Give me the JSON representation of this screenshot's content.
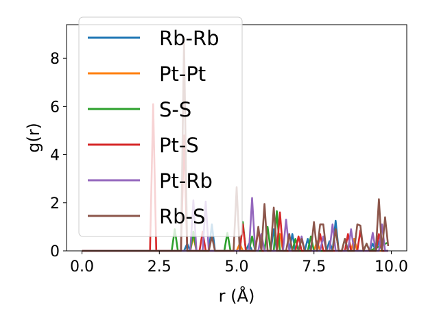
{
  "chart_data": {
    "type": "line",
    "title": "",
    "xlabel": "r (Å)",
    "ylabel": "g(r)",
    "xlim": [
      -0.5,
      10.5
    ],
    "ylim": [
      0,
      9.4
    ],
    "xticks": [
      0.0,
      2.5,
      5.0,
      7.5,
      10.0
    ],
    "xtick_labels": [
      "0.0",
      "2.5",
      "5.0",
      "7.5",
      "10.0"
    ],
    "yticks": [
      0,
      2,
      4,
      6,
      8
    ],
    "ytick_labels": [
      "0",
      "2",
      "4",
      "6",
      "8"
    ],
    "grid": false,
    "legend": "upper-left",
    "series": [
      {
        "name": "Rb-Rb",
        "color": "#1f77b4",
        "points": [
          [
            0,
            0
          ],
          [
            3.3,
            0
          ],
          [
            3.4,
            0.3
          ],
          [
            3.5,
            0
          ],
          [
            4.1,
            0
          ],
          [
            4.2,
            1.1
          ],
          [
            4.3,
            0
          ],
          [
            5.3,
            0
          ],
          [
            5.4,
            0.3
          ],
          [
            5.5,
            0
          ],
          [
            6.1,
            0
          ],
          [
            6.2,
            0.9
          ],
          [
            6.3,
            0
          ],
          [
            6.7,
            0
          ],
          [
            6.8,
            0.7
          ],
          [
            6.9,
            0
          ],
          [
            7.2,
            0
          ],
          [
            7.3,
            0.5
          ],
          [
            7.4,
            0
          ],
          [
            7.9,
            0
          ],
          [
            8.0,
            0.4
          ],
          [
            8.1,
            0
          ],
          [
            8.2,
            1.25
          ],
          [
            8.3,
            0
          ],
          [
            8.7,
            0
          ],
          [
            8.8,
            0.5
          ],
          [
            8.9,
            0
          ],
          [
            9.3,
            0
          ],
          [
            9.4,
            0.3
          ],
          [
            9.5,
            0
          ],
          [
            9.6,
            0.4
          ],
          [
            9.7,
            0
          ],
          [
            9.9,
            0
          ]
        ]
      },
      {
        "name": "Pt-Pt",
        "color": "#ff7f0e",
        "points": [
          [
            0,
            0
          ],
          [
            3.5,
            0
          ],
          [
            3.6,
            0.6
          ],
          [
            3.7,
            0
          ],
          [
            5.0,
            0
          ],
          [
            5.1,
            0.3
          ],
          [
            5.2,
            0
          ],
          [
            6.3,
            0
          ],
          [
            6.4,
            0.7
          ],
          [
            6.5,
            0
          ],
          [
            7.5,
            0
          ],
          [
            7.6,
            0.4
          ],
          [
            7.7,
            0
          ],
          [
            8.7,
            0
          ],
          [
            8.8,
            0.5
          ],
          [
            8.9,
            0
          ],
          [
            9.9,
            0
          ]
        ]
      },
      {
        "name": "S-S",
        "color": "#2ca02c",
        "points": [
          [
            0,
            0
          ],
          [
            2.9,
            0
          ],
          [
            3.0,
            0.9
          ],
          [
            3.1,
            0
          ],
          [
            3.5,
            0
          ],
          [
            3.6,
            0.8
          ],
          [
            3.7,
            0
          ],
          [
            4.6,
            0
          ],
          [
            4.7,
            0.75
          ],
          [
            4.8,
            0
          ],
          [
            5.1,
            0
          ],
          [
            5.2,
            1.2
          ],
          [
            5.3,
            0
          ],
          [
            5.4,
            0
          ],
          [
            5.5,
            0.6
          ],
          [
            5.6,
            0
          ],
          [
            5.9,
            0
          ],
          [
            6.0,
            1.0
          ],
          [
            6.1,
            0
          ],
          [
            6.2,
            0
          ],
          [
            6.3,
            1.65
          ],
          [
            6.4,
            0
          ],
          [
            6.8,
            0
          ],
          [
            6.9,
            0.5
          ],
          [
            7.0,
            0
          ],
          [
            7.3,
            0
          ],
          [
            7.4,
            0.6
          ],
          [
            7.5,
            0
          ],
          [
            8.1,
            0
          ],
          [
            8.2,
            0.9
          ],
          [
            8.3,
            0
          ],
          [
            8.4,
            0
          ],
          [
            8.5,
            0.5
          ],
          [
            8.6,
            0
          ],
          [
            9.1,
            0
          ],
          [
            9.2,
            0.3
          ],
          [
            9.3,
            0
          ],
          [
            9.9,
            0.35
          ]
        ]
      },
      {
        "name": "Pt-S",
        "color": "#d62728",
        "points": [
          [
            0,
            0
          ],
          [
            2.2,
            0
          ],
          [
            2.3,
            6.1
          ],
          [
            2.4,
            0
          ],
          [
            3.2,
            0
          ],
          [
            3.3,
            4.8
          ],
          [
            3.4,
            0
          ],
          [
            3.8,
            0
          ],
          [
            3.9,
            0.8
          ],
          [
            4.0,
            0
          ],
          [
            5.1,
            0
          ],
          [
            5.2,
            1.1
          ],
          [
            5.3,
            0
          ],
          [
            5.6,
            0
          ],
          [
            5.7,
            0.9
          ],
          [
            5.8,
            0
          ],
          [
            6.3,
            0
          ],
          [
            6.4,
            1.6
          ],
          [
            6.5,
            0
          ],
          [
            6.9,
            0
          ],
          [
            7.0,
            0.6
          ],
          [
            7.1,
            0
          ],
          [
            7.6,
            0
          ],
          [
            7.7,
            0.7
          ],
          [
            7.8,
            0
          ],
          [
            8.5,
            0
          ],
          [
            8.6,
            0.7
          ],
          [
            8.7,
            0
          ],
          [
            8.9,
            0
          ],
          [
            9.0,
            0.85
          ],
          [
            9.1,
            0
          ],
          [
            9.5,
            0
          ],
          [
            9.6,
            0.7
          ],
          [
            9.7,
            0
          ],
          [
            9.9,
            0
          ]
        ]
      },
      {
        "name": "Pt-Rb",
        "color": "#9467bd",
        "points": [
          [
            0,
            0
          ],
          [
            3.5,
            0
          ],
          [
            3.6,
            2.1
          ],
          [
            3.7,
            0
          ],
          [
            3.9,
            0
          ],
          [
            4.0,
            2.05
          ],
          [
            4.1,
            0
          ],
          [
            5.4,
            0
          ],
          [
            5.5,
            2.2
          ],
          [
            5.6,
            0
          ],
          [
            5.7,
            0
          ],
          [
            5.8,
            0.7
          ],
          [
            5.9,
            0
          ],
          [
            6.5,
            0
          ],
          [
            6.6,
            1.3
          ],
          [
            6.7,
            0
          ],
          [
            7.0,
            0
          ],
          [
            7.1,
            0.6
          ],
          [
            7.2,
            0
          ],
          [
            7.7,
            0
          ],
          [
            7.8,
            0.6
          ],
          [
            7.9,
            0
          ],
          [
            8.0,
            0
          ],
          [
            8.1,
            1.1
          ],
          [
            8.2,
            0
          ],
          [
            8.6,
            0
          ],
          [
            8.7,
            0.9
          ],
          [
            8.8,
            0
          ],
          [
            9.3,
            0
          ],
          [
            9.4,
            0.75
          ],
          [
            9.5,
            0
          ],
          [
            9.6,
            0
          ],
          [
            9.7,
            1.1
          ],
          [
            9.8,
            0
          ],
          [
            9.9,
            0
          ]
        ]
      },
      {
        "name": "Rb-S",
        "color": "#8c564b",
        "points": [
          [
            0,
            0
          ],
          [
            3.2,
            0
          ],
          [
            3.3,
            8.8
          ],
          [
            3.4,
            0
          ],
          [
            4.1,
            0
          ],
          [
            4.2,
            0.6
          ],
          [
            4.3,
            0
          ],
          [
            4.9,
            0
          ],
          [
            5.0,
            2.65
          ],
          [
            5.1,
            0
          ],
          [
            5.6,
            0
          ],
          [
            5.7,
            1.0
          ],
          [
            5.8,
            0
          ],
          [
            5.9,
            1.95
          ],
          [
            6.0,
            0
          ],
          [
            6.1,
            0
          ],
          [
            6.2,
            1.8
          ],
          [
            6.3,
            0
          ],
          [
            6.6,
            0
          ],
          [
            6.7,
            0.7
          ],
          [
            6.8,
            0
          ],
          [
            7.0,
            0
          ],
          [
            7.1,
            0.5
          ],
          [
            7.2,
            0
          ],
          [
            7.4,
            0
          ],
          [
            7.5,
            1.2
          ],
          [
            7.6,
            0
          ],
          [
            7.7,
            1.1
          ],
          [
            7.8,
            1.1
          ],
          [
            7.9,
            0
          ],
          [
            8.1,
            0
          ],
          [
            8.2,
            0.9
          ],
          [
            8.3,
            0
          ],
          [
            8.4,
            0
          ],
          [
            8.5,
            0.5
          ],
          [
            8.6,
            0
          ],
          [
            8.8,
            0
          ],
          [
            8.9,
            1.1
          ],
          [
            9.0,
            1.05
          ],
          [
            9.1,
            0
          ],
          [
            9.2,
            0.3
          ],
          [
            9.3,
            0
          ],
          [
            9.5,
            0
          ],
          [
            9.6,
            2.15
          ],
          [
            9.7,
            0
          ],
          [
            9.8,
            1.4
          ],
          [
            9.9,
            0.2
          ]
        ]
      }
    ]
  }
}
